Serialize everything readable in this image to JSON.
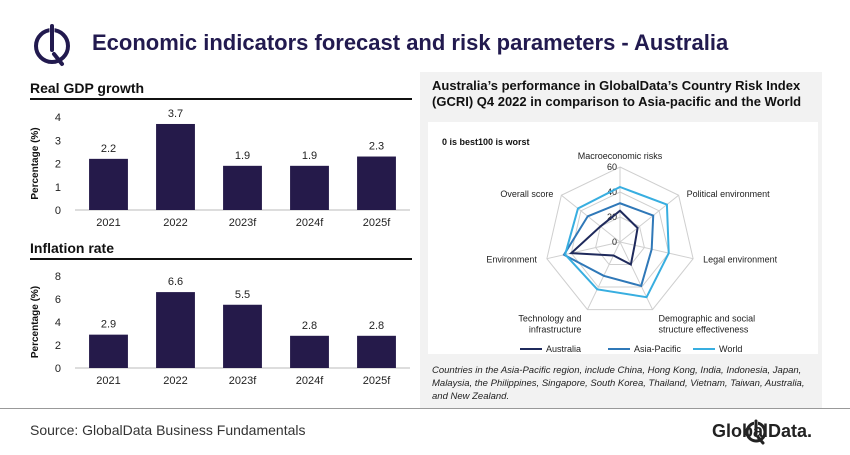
{
  "header": {
    "title": "Economic indicators forecast and risk parameters - Australia"
  },
  "footer": {
    "source": "Source: GlobalData Business Fundamentals",
    "brand": "GlobalData."
  },
  "gcri": {
    "title": "Australia’s performance in GlobalData’s Country Risk Index (GCRI) Q4 2022 in comparison to Asia-pacific and the World",
    "scale_note": "0 is best100  is worst",
    "footnote": "Countries in the Asia-Pacific region, include China, Hong Kong, India, Indonesia, Japan, Malaysia, the Philippines, Singapore, South Korea, Thailand, Vietnam, Taiwan, Australia, and New Zealand."
  },
  "chart_data": [
    {
      "type": "bar",
      "title": "Real GDP growth",
      "ylabel": "Percentage (%)",
      "categories": [
        "2021",
        "2022",
        "2023f",
        "2024f",
        "2025f"
      ],
      "values": [
        2.2,
        3.7,
        1.9,
        1.9,
        2.3
      ],
      "data_labels": [
        "2.2",
        "3.7",
        "1.9",
        "1.9",
        "2.3"
      ],
      "yticks": [
        0,
        1,
        2,
        3,
        4
      ],
      "ylim": [
        0,
        4
      ],
      "color": "#251a4a"
    },
    {
      "type": "bar",
      "title": "Inflation rate",
      "ylabel": "Percentage (%)",
      "categories": [
        "2021",
        "2022",
        "2023f",
        "2024f",
        "2025f"
      ],
      "values": [
        2.9,
        6.6,
        5.5,
        2.8,
        2.8
      ],
      "data_labels": [
        "2.9",
        "6.6",
        "5.5",
        "2.8",
        "2.8"
      ],
      "yticks": [
        0,
        2,
        4,
        6,
        8
      ],
      "ylim": [
        0,
        8
      ],
      "color": "#251a4a"
    },
    {
      "type": "radar",
      "axes": [
        "Macroeconomic risks",
        "Political environment",
        "Legal environment",
        "Demographic and social structure effectiveness",
        "Technology and infrastructure",
        "Environment",
        "Overall score"
      ],
      "axis_label_lines": [
        [
          "Macroeconomic risks"
        ],
        [
          "Political environment"
        ],
        [
          "Legal environment"
        ],
        [
          "Demographic and social",
          "structure effectiveness"
        ],
        [
          "Technology and",
          "infrastructure"
        ],
        [
          "Environment"
        ],
        [
          "Overall score"
        ]
      ],
      "rticks": [
        0,
        20,
        40,
        60
      ],
      "rlim": [
        0,
        60
      ],
      "series": [
        {
          "name": "Australia",
          "color": "#1f2a5c",
          "values": [
            25,
            18,
            12,
            20,
            12,
            40,
            20
          ]
        },
        {
          "name": "Asia-Pacific",
          "color": "#2f78b8",
          "values": [
            31,
            34,
            26,
            39,
            30,
            46,
            33
          ]
        },
        {
          "name": "World",
          "color": "#38aee0",
          "values": [
            44,
            48,
            40,
            49,
            42,
            45,
            43
          ]
        }
      ]
    }
  ]
}
